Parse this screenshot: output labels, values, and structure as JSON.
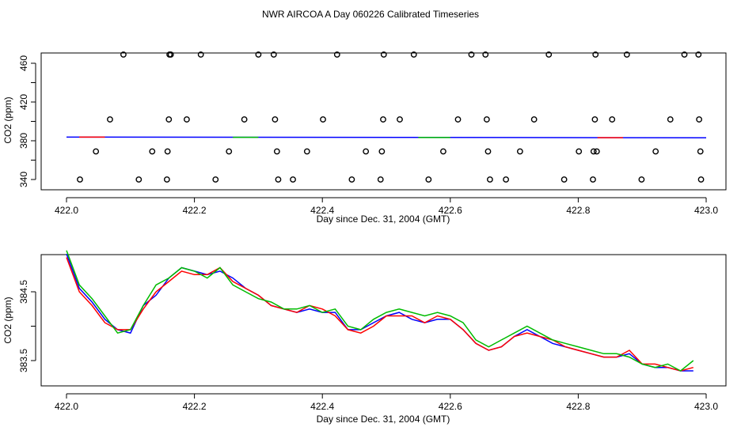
{
  "title": "NWR AIRCOA A  Day 060226  Calibrated Timeseries",
  "chart_data": [
    {
      "type": "scatter",
      "xlabel": "Day since Dec. 31, 2004 (GMT)",
      "ylabel": "CO2 (ppm)",
      "xlim": [
        422.0,
        423.0
      ],
      "ylim": [
        333,
        469
      ],
      "xticks": [
        422.0,
        422.2,
        422.4,
        422.6,
        422.8,
        423.0
      ],
      "xtick_labels": [
        "422.0",
        "422.2",
        "422.4",
        "422.6",
        "422.8",
        "423.0"
      ],
      "yticks": [
        340,
        360,
        380,
        400,
        420,
        440,
        460
      ],
      "ytick_labels": [
        "340",
        "",
        "380",
        "",
        "420",
        "",
        "460"
      ],
      "colors": {
        "line": "#0000ff",
        "accent1": "#ff0000",
        "accent2": "#00bb00",
        "points": "#000000"
      },
      "series": [
        {
          "kind": "points",
          "x": [
            422.021,
            422.046,
            422.068,
            422.089,
            422.113,
            422.134,
            422.157,
            422.158,
            422.16,
            422.161,
            422.163,
            422.188,
            422.21,
            422.233,
            422.254,
            422.278,
            422.3,
            422.324,
            422.326,
            422.329,
            422.331,
            422.354,
            422.376,
            422.401,
            422.423,
            422.446,
            422.468,
            422.491,
            422.493,
            422.495,
            422.496,
            422.521,
            422.543,
            422.566,
            422.589,
            422.612,
            422.633,
            422.655,
            422.657,
            422.659,
            422.662,
            422.687,
            422.709,
            422.731,
            422.754,
            422.778,
            422.801,
            422.823,
            422.824,
            422.826,
            422.827,
            422.829,
            422.853,
            422.876,
            422.899,
            422.921,
            422.944,
            422.966,
            422.988,
            422.989,
            422.991,
            422.992
          ],
          "y": [
            340,
            369,
            402,
            469,
            340,
            369,
            340,
            369,
            402,
            469,
            469,
            402,
            469,
            340,
            369,
            402,
            469,
            469,
            402,
            369,
            340,
            340,
            369,
            402,
            469,
            340,
            369,
            340,
            369,
            402,
            469,
            402,
            469,
            340,
            369,
            402,
            469,
            469,
            402,
            369,
            340,
            340,
            369,
            402,
            469,
            340,
            369,
            340,
            369,
            402,
            469,
            369,
            402,
            469,
            340,
            369,
            402,
            469,
            469,
            402,
            369,
            340
          ]
        },
        {
          "kind": "line",
          "x": [
            422.0,
            423.0
          ],
          "y": [
            383.8,
            383.1
          ]
        }
      ]
    },
    {
      "type": "line",
      "xlabel": "Day since Dec. 31, 2004 (GMT)",
      "ylabel": "CO2 (ppm)",
      "xlim": [
        422.0,
        423.0
      ],
      "ylim": [
        383.1,
        385.2
      ],
      "xticks": [
        422.0,
        422.2,
        422.4,
        422.6,
        422.8,
        423.0
      ],
      "xtick_labels": [
        "422.0",
        "422.2",
        "422.4",
        "422.6",
        "422.8",
        "423.0"
      ],
      "yticks": [
        383.5,
        384.0,
        384.5
      ],
      "ytick_labels": [
        "383.5",
        "",
        "384.5"
      ],
      "series_x": [
        422.0,
        422.02,
        422.04,
        422.06,
        422.08,
        422.1,
        422.12,
        422.14,
        422.16,
        422.18,
        422.2,
        422.22,
        422.24,
        422.26,
        422.28,
        422.3,
        422.32,
        422.34,
        422.36,
        422.38,
        422.4,
        422.42,
        422.44,
        422.46,
        422.48,
        422.5,
        422.52,
        422.54,
        422.56,
        422.58,
        422.6,
        422.62,
        422.64,
        422.66,
        422.68,
        422.7,
        422.72,
        422.74,
        422.76,
        422.78,
        422.8,
        422.82,
        422.84,
        422.86,
        422.88,
        422.9,
        422.92,
        422.94,
        422.96,
        422.98
      ],
      "series": [
        {
          "color": "#0000ff",
          "values": [
            385.05,
            384.55,
            384.35,
            384.1,
            383.95,
            383.9,
            384.3,
            384.45,
            384.7,
            384.85,
            384.8,
            384.75,
            384.8,
            384.7,
            384.55,
            384.45,
            384.3,
            384.25,
            384.2,
            384.25,
            384.2,
            384.2,
            383.95,
            383.95,
            384.05,
            384.15,
            384.2,
            384.1,
            384.05,
            384.1,
            384.1,
            383.95,
            383.75,
            383.65,
            383.7,
            383.85,
            383.95,
            383.85,
            383.75,
            383.7,
            383.65,
            383.6,
            383.55,
            383.55,
            383.6,
            383.45,
            383.4,
            383.4,
            383.35,
            383.35
          ]
        },
        {
          "color": "#ff0000",
          "values": [
            385.0,
            384.5,
            384.3,
            384.05,
            383.95,
            383.95,
            384.25,
            384.5,
            384.65,
            384.8,
            384.75,
            384.75,
            384.85,
            384.65,
            384.55,
            384.45,
            384.3,
            384.25,
            384.2,
            384.3,
            384.25,
            384.15,
            383.95,
            383.9,
            384.0,
            384.15,
            384.15,
            384.15,
            384.05,
            384.15,
            384.1,
            383.95,
            383.75,
            383.65,
            383.7,
            383.85,
            383.9,
            383.85,
            383.8,
            383.7,
            383.65,
            383.6,
            383.55,
            383.55,
            383.65,
            383.45,
            383.45,
            383.4,
            383.35,
            383.4
          ]
        },
        {
          "color": "#00bb00",
          "values": [
            385.1,
            384.6,
            384.4,
            384.15,
            383.9,
            383.95,
            384.3,
            384.6,
            384.7,
            384.85,
            384.8,
            384.7,
            384.85,
            384.6,
            384.5,
            384.4,
            384.35,
            384.25,
            384.25,
            384.3,
            384.2,
            384.25,
            384.0,
            383.95,
            384.1,
            384.2,
            384.25,
            384.2,
            384.15,
            384.2,
            384.15,
            384.05,
            383.8,
            383.7,
            383.8,
            383.9,
            384.0,
            383.9,
            383.8,
            383.75,
            383.7,
            383.65,
            383.6,
            383.6,
            383.55,
            383.45,
            383.4,
            383.45,
            383.35,
            383.5
          ]
        }
      ]
    }
  ]
}
